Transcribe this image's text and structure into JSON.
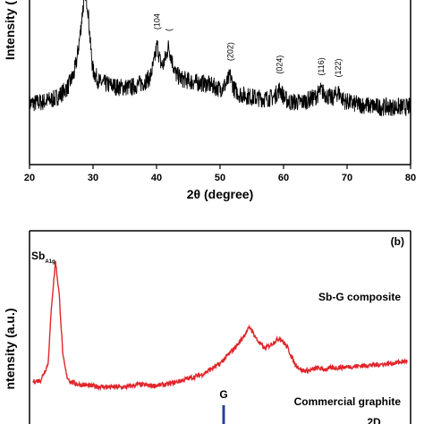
{
  "chart_data": [
    {
      "type": "line",
      "panel": "a",
      "xlabel": "2θ (degree)",
      "ylabel": "Intensity (",
      "xlim": [
        20,
        80
      ],
      "x_ticks": [
        20,
        30,
        40,
        50,
        60,
        70,
        80
      ],
      "grid": false,
      "color": "#000000",
      "peaks": [
        {
          "x": 28.6,
          "label": ""
        },
        {
          "x": 40.1,
          "label": "(104"
        },
        {
          "x": 41.9,
          "label": "("
        },
        {
          "x": 51.6,
          "label": "(202)"
        },
        {
          "x": 59.4,
          "label": "(024)"
        },
        {
          "x": 65.9,
          "label": "(116)"
        },
        {
          "x": 68.6,
          "label": "(122)"
        }
      ],
      "series": [
        {
          "x": [
            20,
            22,
            24,
            25,
            26,
            27,
            27.5,
            28,
            28.4,
            28.8,
            29.2,
            29.6,
            30,
            31,
            32,
            34,
            36,
            38,
            39,
            39.6,
            40.1,
            40.6,
            41,
            41.5,
            41.9,
            42.4,
            43,
            44,
            46,
            48,
            50,
            51,
            51.6,
            52.2,
            53,
            55,
            57,
            58.5,
            59.4,
            60.2,
            61,
            63,
            65,
            65.9,
            66.8,
            67.6,
            68.6,
            69.5,
            71,
            73,
            75,
            77,
            80
          ],
          "values": [
            0.37,
            0.38,
            0.4,
            0.43,
            0.47,
            0.55,
            0.65,
            0.8,
            0.95,
            1.05,
            0.95,
            0.72,
            0.57,
            0.5,
            0.49,
            0.47,
            0.47,
            0.5,
            0.53,
            0.62,
            0.73,
            0.62,
            0.6,
            0.66,
            0.72,
            0.64,
            0.55,
            0.52,
            0.5,
            0.49,
            0.46,
            0.49,
            0.54,
            0.46,
            0.43,
            0.41,
            0.4,
            0.41,
            0.46,
            0.4,
            0.38,
            0.38,
            0.41,
            0.45,
            0.42,
            0.4,
            0.44,
            0.39,
            0.37,
            0.36,
            0.35,
            0.35,
            0.35
          ]
        }
      ]
    },
    {
      "type": "line",
      "panel": "b",
      "panel_label": "(b)",
      "ylabel": "ntensity (a.u.)",
      "grid": false,
      "series_labels": {
        "sb": "Sb",
        "sb_sub": "A1g",
        "composite": "Sb-G composite",
        "commercial": "Commercial graphite",
        "g": "G",
        "twod": "2D"
      },
      "series": [
        {
          "name": "Sb-G composite",
          "color": "#e0262b",
          "x": [
            0,
            0.02,
            0.04,
            0.05,
            0.06,
            0.07,
            0.08,
            0.09,
            0.1,
            0.12,
            0.15,
            0.2,
            0.25,
            0.28,
            0.32,
            0.36,
            0.4,
            0.45,
            0.5,
            0.55,
            0.58,
            0.6,
            0.62,
            0.64,
            0.66,
            0.68,
            0.7,
            0.72,
            0.74,
            0.76,
            0.78,
            0.8,
            0.85,
            0.9,
            0.95,
            1.0
          ],
          "values": [
            0.12,
            0.13,
            0.25,
            0.7,
            1.0,
            0.75,
            0.3,
            0.16,
            0.12,
            0.1,
            0.09,
            0.08,
            0.08,
            0.1,
            0.09,
            0.1,
            0.13,
            0.17,
            0.25,
            0.4,
            0.52,
            0.42,
            0.36,
            0.4,
            0.44,
            0.37,
            0.25,
            0.2,
            0.2,
            0.22,
            0.21,
            0.22,
            0.23,
            0.24,
            0.25,
            0.27
          ]
        }
      ]
    }
  ]
}
